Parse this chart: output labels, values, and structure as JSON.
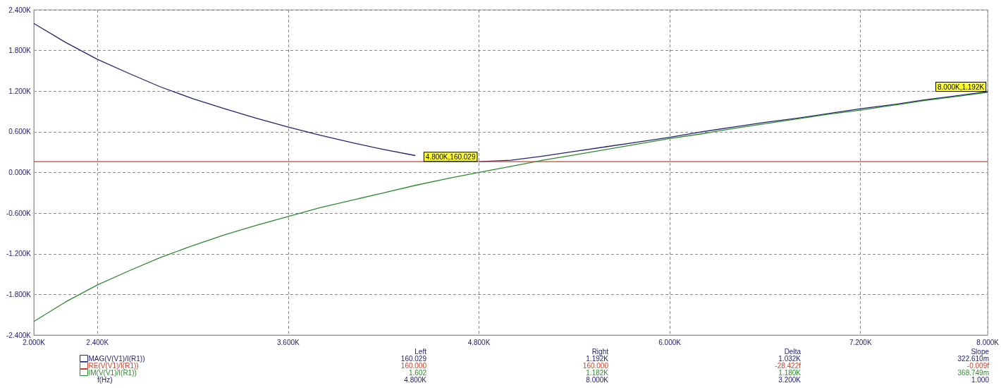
{
  "chart_data": {
    "type": "line",
    "xlabel": "f(Hz)",
    "x": [
      2000,
      2200,
      2400,
      2600,
      2800,
      3000,
      3200,
      3400,
      3600,
      3800,
      4000,
      4200,
      4400,
      4600,
      4800,
      5000,
      5200,
      5400,
      5600,
      5800,
      6000,
      6200,
      6400,
      6600,
      6800,
      7000,
      7200,
      7400,
      7600,
      7800,
      8000
    ],
    "series": [
      {
        "name": "MAG(V(V1)/I(R1))",
        "color": "#23236e",
        "values": [
          2200,
          1920,
          1670,
          1460,
          1260,
          1090,
          940,
          800,
          670,
          550,
          440,
          340,
          250,
          null,
          160.03,
          180,
          240,
          310,
          380,
          450,
          520,
          600,
          670,
          740,
          800,
          870,
          940,
          1000,
          1070,
          1130,
          1192
        ]
      },
      {
        "name": "RE(V(V1)/I(R1))",
        "color": "#c8452f",
        "x": [
          2000,
          8000
        ],
        "values": [
          160,
          160
        ]
      },
      {
        "name": "IM(V(V1)/I(R1))",
        "color": "#2f8a2f",
        "values": [
          -2200,
          -1910,
          -1660,
          -1450,
          -1250,
          -1080,
          -920,
          -780,
          -650,
          -520,
          -410,
          -300,
          -190,
          -90,
          1.6,
          90,
          180,
          260,
          340,
          420,
          500,
          570,
          650,
          720,
          790,
          860,
          920,
          990,
          1060,
          1120,
          1182
        ]
      }
    ],
    "xlim": [
      2000,
      8000
    ],
    "xticks": [
      {
        "value": 2000,
        "label": "2.000K"
      },
      {
        "value": 2400,
        "label": "2.400K"
      },
      {
        "value": 3600,
        "label": "3.600K"
      },
      {
        "value": 4800,
        "label": "4.800K"
      },
      {
        "value": 6000,
        "label": "6.000K"
      },
      {
        "value": 7200,
        "label": "7.200K"
      },
      {
        "value": 8000,
        "label": "8.000K"
      }
    ],
    "ylim": [
      -2400,
      2400
    ],
    "yticks": [
      {
        "value": -2400,
        "label": "-2.400K"
      },
      {
        "value": -1800,
        "label": "-1.800K"
      },
      {
        "value": -1200,
        "label": "-1.200K"
      },
      {
        "value": -600,
        "label": "-0.600K"
      },
      {
        "value": 0,
        "label": "0.000K"
      },
      {
        "value": 600,
        "label": "0.600K"
      },
      {
        "value": 1200,
        "label": "1.200K"
      },
      {
        "value": 1800,
        "label": "1.800K"
      },
      {
        "value": 2400,
        "label": "2.400K"
      }
    ],
    "grid": true,
    "legend": "bottom left",
    "annotations": [
      {
        "text": "4.800K,160.029",
        "x": 4800,
        "y": 160.029
      },
      {
        "text": "8.000K,1.192K",
        "x": 8000,
        "y": 1192
      },
      "Left",
      "Right",
      "Delta",
      "Slope",
      "160.029",
      "1.192K",
      "1.032K",
      "322.610m",
      "160.000",
      "160.000",
      "-28.422f",
      "-0.009f",
      "1.602",
      "1.182K",
      "1.180K",
      "368.749m",
      "4.800K",
      "8.000K",
      "3.200K",
      "1.000"
    ]
  }
}
